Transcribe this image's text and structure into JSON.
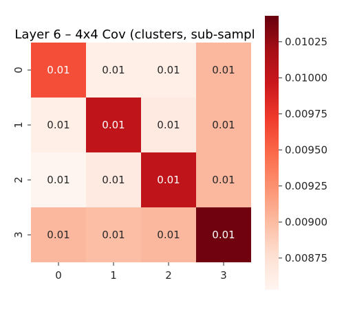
{
  "chart_data": {
    "type": "heatmap",
    "title": "Layer 6 – 4x4 Cov (clusters, sub-sampl",
    "x_categories": [
      "0",
      "1",
      "2",
      "3"
    ],
    "y_categories": [
      "0",
      "1",
      "2",
      "3"
    ],
    "values": [
      [
        0.00962,
        0.0086,
        0.0086,
        0.00902
      ],
      [
        0.0086,
        0.01003,
        0.00865,
        0.00902
      ],
      [
        0.00853,
        0.00865,
        0.01003,
        0.00902
      ],
      [
        0.00902,
        0.00898,
        0.00902,
        0.0104
      ]
    ],
    "cell_labels": [
      [
        "0.01",
        "0.01",
        "0.01",
        "0.01"
      ],
      [
        "0.01",
        "0.01",
        "0.01",
        "0.01"
      ],
      [
        "0.01",
        "0.01",
        "0.01",
        "0.01"
      ],
      [
        "0.01",
        "0.01",
        "0.01",
        "0.01"
      ]
    ],
    "colormap": "Reds",
    "colorbar": {
      "vmin": 0.00853,
      "vmax": 0.01043,
      "ticks": [
        0.00875,
        0.009,
        0.00925,
        0.0095,
        0.00975,
        0.01,
        0.01025
      ],
      "tick_labels": [
        "0.00875",
        "0.00900",
        "0.00925",
        "0.00950",
        "0.00975",
        "0.01000",
        "0.01025"
      ]
    },
    "colorscale": [
      "#fff5f0",
      "#fee0d2",
      "#fcbba1",
      "#fc9272",
      "#fb6a4a",
      "#ef3b2c",
      "#cb181d",
      "#a50f15",
      "#67000d"
    ],
    "cell_text_dark": "#262626",
    "cell_text_light": "#ffffff"
  }
}
